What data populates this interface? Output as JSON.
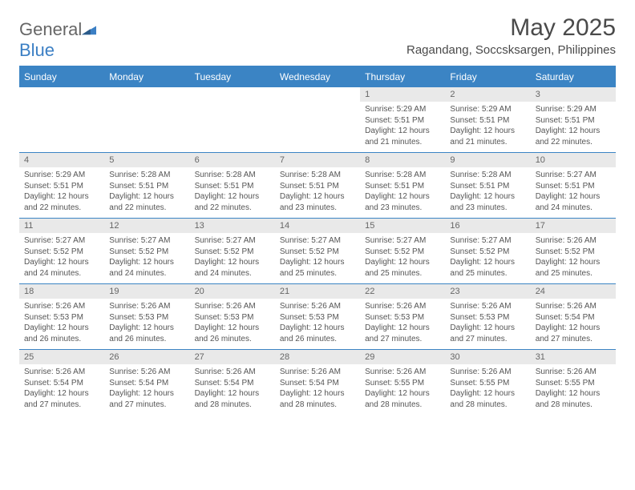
{
  "brand": {
    "name_part1": "General",
    "name_part2": "Blue"
  },
  "header": {
    "month_title": "May 2025",
    "location": "Ragandang, Soccsksargen, Philippines"
  },
  "style": {
    "header_bg": "#3b84c4",
    "header_fg": "#ffffff",
    "daynum_bg": "#e9e9e9",
    "border_color": "#3b84c4",
    "text_color": "#555555",
    "title_color": "#4a4a4a",
    "month_title_fontsize": 30,
    "location_fontsize": 15,
    "weekday_fontsize": 12,
    "body_fontsize": 10
  },
  "weekdays": [
    "Sunday",
    "Monday",
    "Tuesday",
    "Wednesday",
    "Thursday",
    "Friday",
    "Saturday"
  ],
  "weeks": [
    [
      {
        "day": "",
        "sunrise": "",
        "sunset": "",
        "daylight1": "",
        "daylight2": ""
      },
      {
        "day": "",
        "sunrise": "",
        "sunset": "",
        "daylight1": "",
        "daylight2": ""
      },
      {
        "day": "",
        "sunrise": "",
        "sunset": "",
        "daylight1": "",
        "daylight2": ""
      },
      {
        "day": "",
        "sunrise": "",
        "sunset": "",
        "daylight1": "",
        "daylight2": ""
      },
      {
        "day": "1",
        "sunrise": "Sunrise: 5:29 AM",
        "sunset": "Sunset: 5:51 PM",
        "daylight1": "Daylight: 12 hours",
        "daylight2": "and 21 minutes."
      },
      {
        "day": "2",
        "sunrise": "Sunrise: 5:29 AM",
        "sunset": "Sunset: 5:51 PM",
        "daylight1": "Daylight: 12 hours",
        "daylight2": "and 21 minutes."
      },
      {
        "day": "3",
        "sunrise": "Sunrise: 5:29 AM",
        "sunset": "Sunset: 5:51 PM",
        "daylight1": "Daylight: 12 hours",
        "daylight2": "and 22 minutes."
      }
    ],
    [
      {
        "day": "4",
        "sunrise": "Sunrise: 5:29 AM",
        "sunset": "Sunset: 5:51 PM",
        "daylight1": "Daylight: 12 hours",
        "daylight2": "and 22 minutes."
      },
      {
        "day": "5",
        "sunrise": "Sunrise: 5:28 AM",
        "sunset": "Sunset: 5:51 PM",
        "daylight1": "Daylight: 12 hours",
        "daylight2": "and 22 minutes."
      },
      {
        "day": "6",
        "sunrise": "Sunrise: 5:28 AM",
        "sunset": "Sunset: 5:51 PM",
        "daylight1": "Daylight: 12 hours",
        "daylight2": "and 22 minutes."
      },
      {
        "day": "7",
        "sunrise": "Sunrise: 5:28 AM",
        "sunset": "Sunset: 5:51 PM",
        "daylight1": "Daylight: 12 hours",
        "daylight2": "and 23 minutes."
      },
      {
        "day": "8",
        "sunrise": "Sunrise: 5:28 AM",
        "sunset": "Sunset: 5:51 PM",
        "daylight1": "Daylight: 12 hours",
        "daylight2": "and 23 minutes."
      },
      {
        "day": "9",
        "sunrise": "Sunrise: 5:28 AM",
        "sunset": "Sunset: 5:51 PM",
        "daylight1": "Daylight: 12 hours",
        "daylight2": "and 23 minutes."
      },
      {
        "day": "10",
        "sunrise": "Sunrise: 5:27 AM",
        "sunset": "Sunset: 5:51 PM",
        "daylight1": "Daylight: 12 hours",
        "daylight2": "and 24 minutes."
      }
    ],
    [
      {
        "day": "11",
        "sunrise": "Sunrise: 5:27 AM",
        "sunset": "Sunset: 5:52 PM",
        "daylight1": "Daylight: 12 hours",
        "daylight2": "and 24 minutes."
      },
      {
        "day": "12",
        "sunrise": "Sunrise: 5:27 AM",
        "sunset": "Sunset: 5:52 PM",
        "daylight1": "Daylight: 12 hours",
        "daylight2": "and 24 minutes."
      },
      {
        "day": "13",
        "sunrise": "Sunrise: 5:27 AM",
        "sunset": "Sunset: 5:52 PM",
        "daylight1": "Daylight: 12 hours",
        "daylight2": "and 24 minutes."
      },
      {
        "day": "14",
        "sunrise": "Sunrise: 5:27 AM",
        "sunset": "Sunset: 5:52 PM",
        "daylight1": "Daylight: 12 hours",
        "daylight2": "and 25 minutes."
      },
      {
        "day": "15",
        "sunrise": "Sunrise: 5:27 AM",
        "sunset": "Sunset: 5:52 PM",
        "daylight1": "Daylight: 12 hours",
        "daylight2": "and 25 minutes."
      },
      {
        "day": "16",
        "sunrise": "Sunrise: 5:27 AM",
        "sunset": "Sunset: 5:52 PM",
        "daylight1": "Daylight: 12 hours",
        "daylight2": "and 25 minutes."
      },
      {
        "day": "17",
        "sunrise": "Sunrise: 5:26 AM",
        "sunset": "Sunset: 5:52 PM",
        "daylight1": "Daylight: 12 hours",
        "daylight2": "and 25 minutes."
      }
    ],
    [
      {
        "day": "18",
        "sunrise": "Sunrise: 5:26 AM",
        "sunset": "Sunset: 5:53 PM",
        "daylight1": "Daylight: 12 hours",
        "daylight2": "and 26 minutes."
      },
      {
        "day": "19",
        "sunrise": "Sunrise: 5:26 AM",
        "sunset": "Sunset: 5:53 PM",
        "daylight1": "Daylight: 12 hours",
        "daylight2": "and 26 minutes."
      },
      {
        "day": "20",
        "sunrise": "Sunrise: 5:26 AM",
        "sunset": "Sunset: 5:53 PM",
        "daylight1": "Daylight: 12 hours",
        "daylight2": "and 26 minutes."
      },
      {
        "day": "21",
        "sunrise": "Sunrise: 5:26 AM",
        "sunset": "Sunset: 5:53 PM",
        "daylight1": "Daylight: 12 hours",
        "daylight2": "and 26 minutes."
      },
      {
        "day": "22",
        "sunrise": "Sunrise: 5:26 AM",
        "sunset": "Sunset: 5:53 PM",
        "daylight1": "Daylight: 12 hours",
        "daylight2": "and 27 minutes."
      },
      {
        "day": "23",
        "sunrise": "Sunrise: 5:26 AM",
        "sunset": "Sunset: 5:53 PM",
        "daylight1": "Daylight: 12 hours",
        "daylight2": "and 27 minutes."
      },
      {
        "day": "24",
        "sunrise": "Sunrise: 5:26 AM",
        "sunset": "Sunset: 5:54 PM",
        "daylight1": "Daylight: 12 hours",
        "daylight2": "and 27 minutes."
      }
    ],
    [
      {
        "day": "25",
        "sunrise": "Sunrise: 5:26 AM",
        "sunset": "Sunset: 5:54 PM",
        "daylight1": "Daylight: 12 hours",
        "daylight2": "and 27 minutes."
      },
      {
        "day": "26",
        "sunrise": "Sunrise: 5:26 AM",
        "sunset": "Sunset: 5:54 PM",
        "daylight1": "Daylight: 12 hours",
        "daylight2": "and 27 minutes."
      },
      {
        "day": "27",
        "sunrise": "Sunrise: 5:26 AM",
        "sunset": "Sunset: 5:54 PM",
        "daylight1": "Daylight: 12 hours",
        "daylight2": "and 28 minutes."
      },
      {
        "day": "28",
        "sunrise": "Sunrise: 5:26 AM",
        "sunset": "Sunset: 5:54 PM",
        "daylight1": "Daylight: 12 hours",
        "daylight2": "and 28 minutes."
      },
      {
        "day": "29",
        "sunrise": "Sunrise: 5:26 AM",
        "sunset": "Sunset: 5:55 PM",
        "daylight1": "Daylight: 12 hours",
        "daylight2": "and 28 minutes."
      },
      {
        "day": "30",
        "sunrise": "Sunrise: 5:26 AM",
        "sunset": "Sunset: 5:55 PM",
        "daylight1": "Daylight: 12 hours",
        "daylight2": "and 28 minutes."
      },
      {
        "day": "31",
        "sunrise": "Sunrise: 5:26 AM",
        "sunset": "Sunset: 5:55 PM",
        "daylight1": "Daylight: 12 hours",
        "daylight2": "and 28 minutes."
      }
    ]
  ]
}
